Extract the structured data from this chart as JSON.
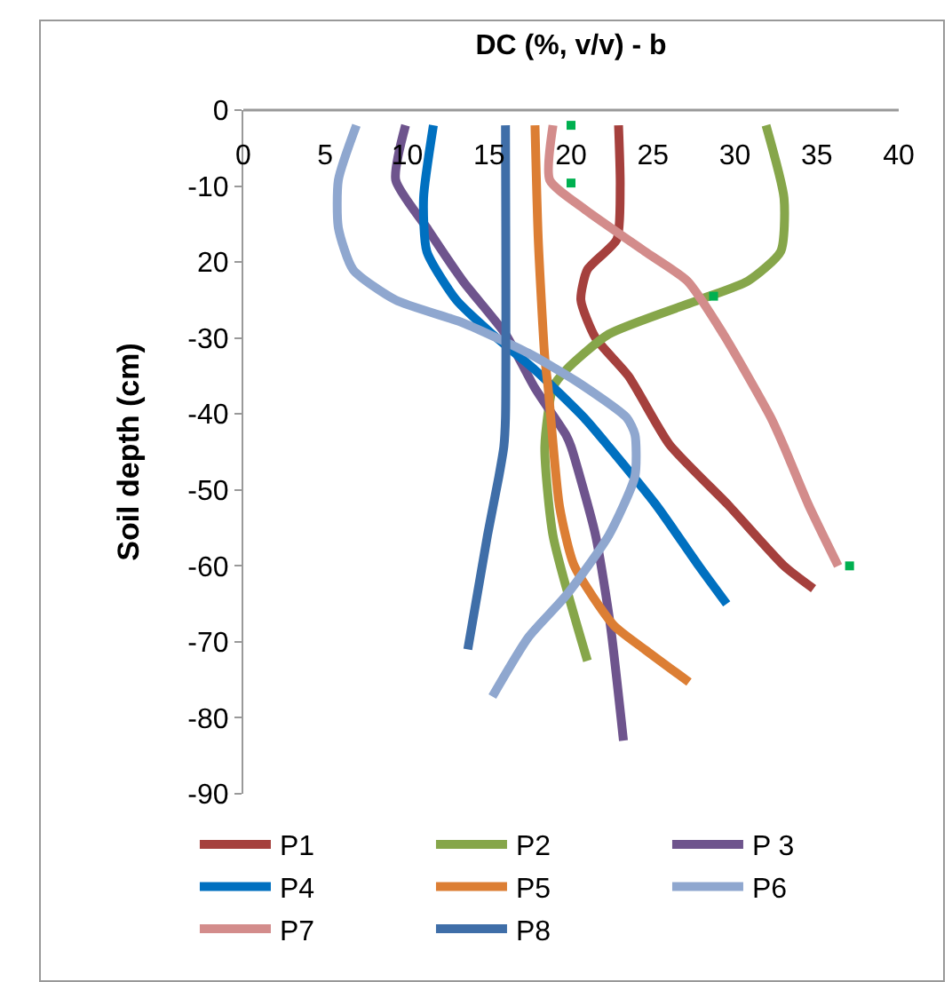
{
  "chart_data": {
    "type": "line",
    "title": "DC (%, v/v) - b",
    "ylabel": "Soil depth (cm)",
    "xlim": [
      0,
      40
    ],
    "xticks": [
      0,
      5,
      10,
      15,
      20,
      25,
      30,
      35,
      40
    ],
    "ylim": [
      -90,
      0
    ],
    "yticks": [
      0,
      -10,
      {
        "value": -20,
        "label": "20"
      },
      -30,
      -40,
      -50,
      -60,
      -70,
      -80,
      -90
    ],
    "grid": false,
    "legend": "bottom",
    "line_style": "solid",
    "series": [
      {
        "name": "P1",
        "color": "#a5403d",
        "x": [
          22.9,
          23,
          22.8,
          21,
          20.6,
          21.5,
          23.5,
          26,
          29.6,
          33,
          34.8
        ],
        "values": [
          -2,
          -10,
          -17,
          -21,
          -25,
          -30,
          -35,
          -44,
          -52,
          -60,
          -63
        ]
      },
      {
        "name": "P2",
        "color": "#86a64a",
        "x": [
          31.9,
          33,
          32.8,
          30.8,
          27.8,
          22.3,
          19.7,
          18.9,
          18.4,
          18.9,
          21
        ],
        "values": [
          -2,
          -11.6,
          -18.6,
          -22.5,
          -25,
          -29.5,
          -34.2,
          -36.5,
          -44.3,
          -56,
          -72.5
        ]
      },
      {
        "name": "P 3",
        "color": "#6e548d",
        "x": [
          9.9,
          9.3,
          11.2,
          13.4,
          16,
          17.8,
          19.7,
          20,
          21.5,
          22.4,
          23.2
        ],
        "values": [
          -2,
          -9.2,
          -15.5,
          -22.5,
          -29.5,
          -36.6,
          -42.8,
          -44.3,
          -56,
          -67.8,
          -83
        ]
      },
      {
        "name": "P4",
        "color": "#0070c0",
        "x": [
          11.6,
          11,
          11.2,
          13,
          15.2,
          17.8,
          20.8,
          22.3,
          25.2,
          27.8,
          29.5
        ],
        "values": [
          -2,
          -11.6,
          -18.6,
          -25,
          -29.5,
          -34.2,
          -40.5,
          -44.3,
          -52,
          -60,
          -65
        ]
      },
      {
        "name": "P5",
        "color": "#dc7e34",
        "x": [
          17.8,
          18,
          18.4,
          18.6,
          19.3,
          20.2,
          22.6,
          24.5,
          27.2
        ],
        "values": [
          -2,
          -17,
          -32.6,
          -36.5,
          -52.2,
          -60,
          -67.8,
          -71,
          -75.3
        ]
      },
      {
        "name": "P6",
        "color": "#8fa7cf",
        "x": [
          6.9,
          5.8,
          5.8,
          6.7,
          9.3,
          13.4,
          17.4,
          20.4,
          23.4,
          23.9,
          23.9,
          22.3,
          19.7,
          17.4,
          15.2
        ],
        "values": [
          -2,
          -9.2,
          -15.5,
          -21,
          -25,
          -28,
          -32,
          -35.8,
          -40.5,
          -42.7,
          -48.2,
          -56,
          -63.9,
          -69.4,
          -77.2
        ]
      },
      {
        "name": "P7",
        "color": "#d38c8b",
        "x": [
          18.9,
          18.7,
          20.8,
          24.5,
          27.1,
          29.3,
          32.2,
          33,
          34.5,
          36.3
        ],
        "values": [
          -2,
          -9.2,
          -13,
          -18.6,
          -22.5,
          -29.5,
          -40.5,
          -44.3,
          -52,
          -60
        ]
      },
      {
        "name": "P8",
        "color": "#3f6ea8",
        "x": [
          16,
          16,
          15.9,
          15.6,
          14.9,
          13.7
        ],
        "values": [
          -2,
          -40.5,
          -44.3,
          -48.2,
          -56,
          -71
        ]
      },
      {
        "type": "scatter",
        "marker": "square",
        "color": "#00b050",
        "x": [
          20,
          20,
          28.7,
          37
        ],
        "values": [
          -2,
          -9.6,
          -24.5,
          -60
        ]
      }
    ]
  }
}
